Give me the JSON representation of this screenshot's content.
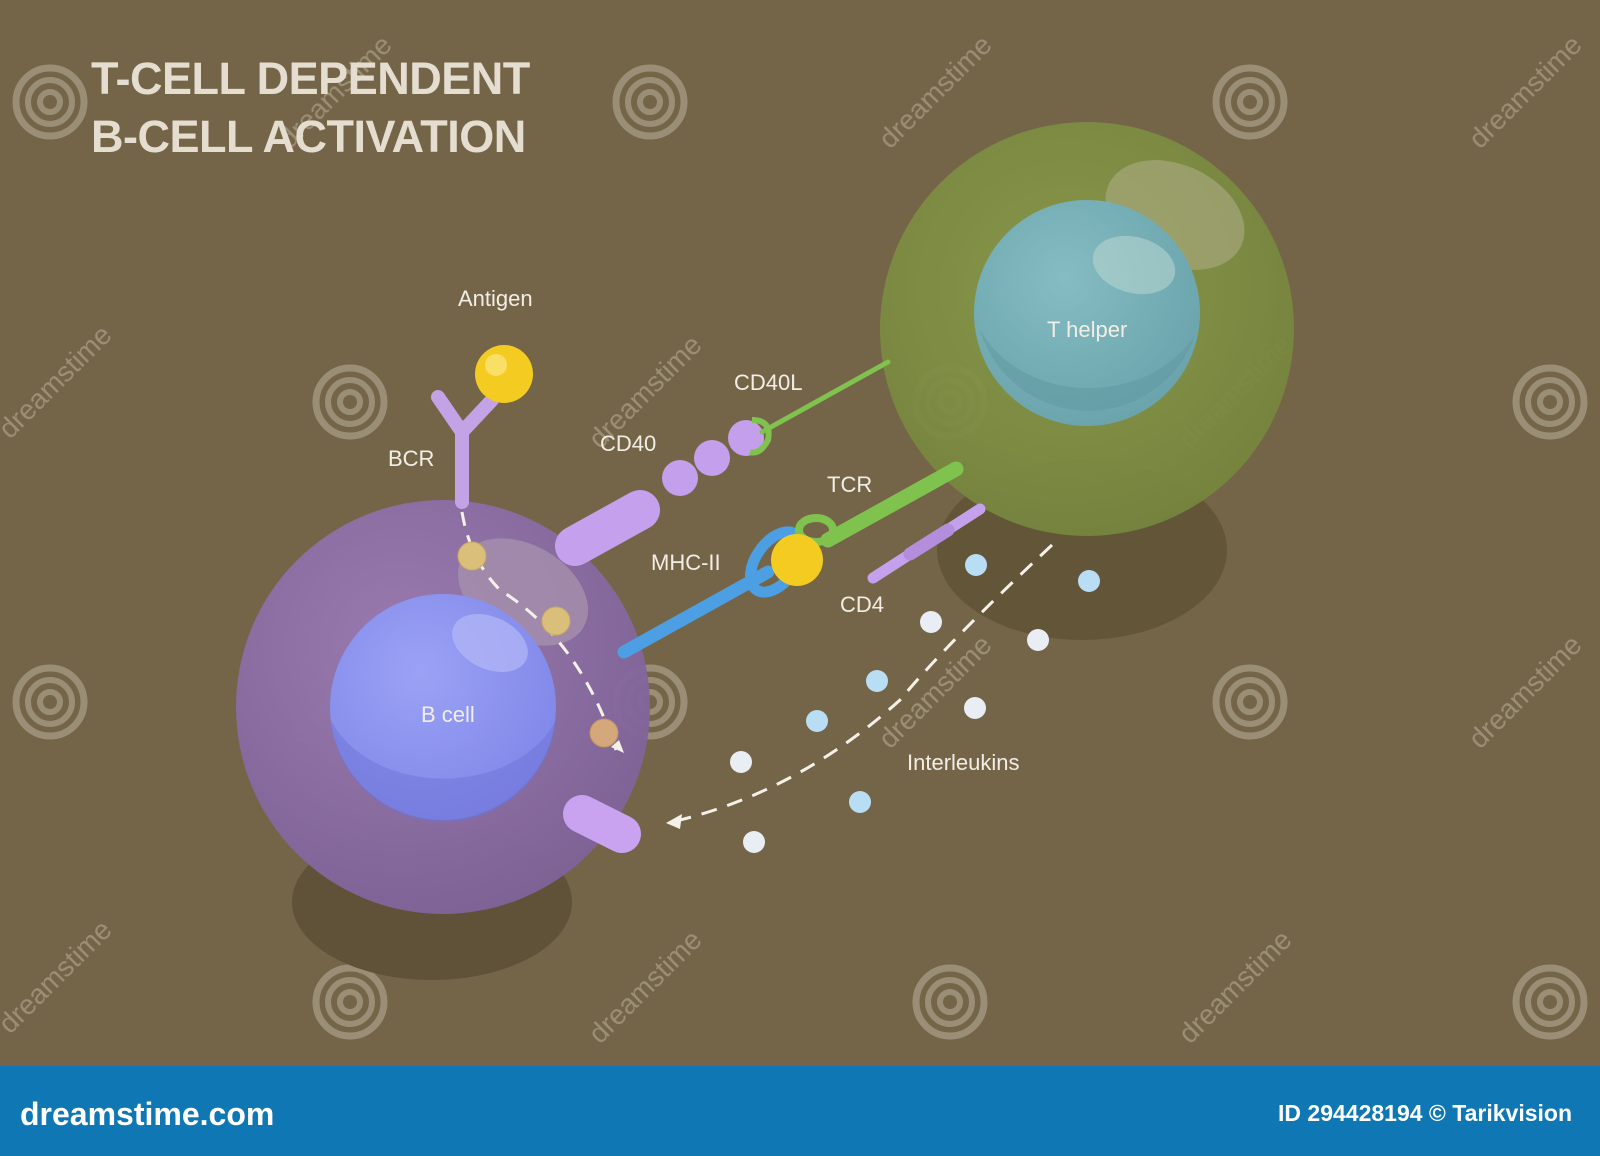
{
  "title": {
    "line1": "T-CELL DEPENDENT",
    "line2": "B-CELL ACTIVATION"
  },
  "labels": {
    "antigen": "Antigen",
    "bcr": "BCR",
    "cd40": "CD40",
    "cd40l": "CD40L",
    "tcr": "TCR",
    "mhc2": "MHC-II",
    "cd4": "CD4",
    "t_helper": "T helper",
    "b_cell": "B cell",
    "interleukins": "Interleukins"
  },
  "footer": {
    "site": "dreamstime.com",
    "credit": "ID 294428194 © Tarikvision"
  },
  "watermark": {
    "text": "dreamstime"
  },
  "colors": {
    "background": "#756548",
    "footer": "#0f77b3",
    "b_cell": "#8a6fa0",
    "b_nucleus": "#8a90ee",
    "t_cell": "#7e8c45",
    "t_nucleus": "#77aeb6",
    "antigen": "#f2cc1e",
    "receptor": "#c9a4ec",
    "tcr": "#7cc34a",
    "mhc": "#4a9ee0",
    "interleukin": "#b9ddf4"
  }
}
